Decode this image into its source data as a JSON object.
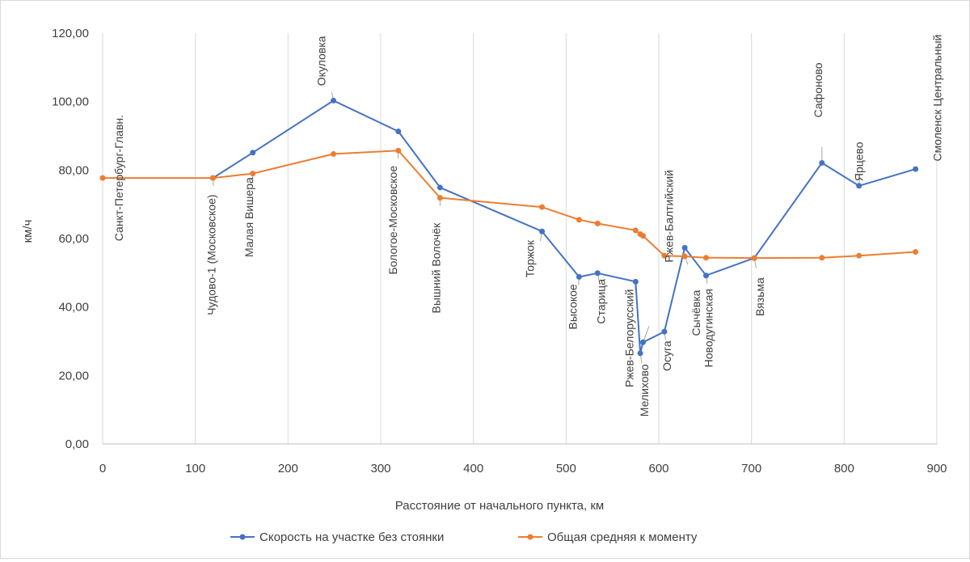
{
  "chart_data": {
    "type": "line",
    "xlabel": "Расстояние от начального пункта, км",
    "ylabel": "км/ч",
    "xlim": [
      0,
      900
    ],
    "ylim": [
      0,
      120
    ],
    "x_ticks": [
      "0",
      "100",
      "200",
      "300",
      "400",
      "500",
      "600",
      "700",
      "800",
      "900"
    ],
    "y_ticks": [
      "0,00",
      "20,00",
      "40,00",
      "60,00",
      "80,00",
      "100,00",
      "120,00"
    ],
    "grid": "vertical",
    "legend": "bottom",
    "series": [
      {
        "name": "Скорость на участке без стоянки",
        "color": "#4472c4",
        "x": [
          119,
          162,
          249,
          319,
          364,
          474,
          514,
          534,
          575,
          580,
          583,
          606,
          628,
          651,
          703,
          776,
          816,
          877
        ],
        "y": [
          77.7,
          85.1,
          100.3,
          91.3,
          74.9,
          62.1,
          48.8,
          49.9,
          47.4,
          26.5,
          29.7,
          32.8,
          57.3,
          49.2,
          54.3,
          82.1,
          75.4,
          80.3
        ]
      },
      {
        "name": "Общая средняя к моменту",
        "color": "#ed7d31",
        "x": [
          0,
          119,
          162,
          249,
          319,
          364,
          474,
          514,
          534,
          575,
          580,
          583,
          606,
          628,
          651,
          703,
          776,
          816,
          877
        ],
        "y": [
          77.7,
          77.7,
          79.0,
          84.7,
          85.7,
          71.9,
          69.2,
          65.5,
          64.4,
          62.4,
          61.3,
          60.8,
          55.0,
          54.8,
          54.4,
          54.3,
          54.4,
          55.0,
          56.1
        ]
      }
    ],
    "stations": [
      {
        "label": "Санкт-Петербург-Главн.",
        "x": 0,
        "y": 77.7
      },
      {
        "label": "Чудово-1 (Московское)",
        "x": 119,
        "y": 77.7
      },
      {
        "label": "Малая Вишера",
        "x": 162,
        "y": 79.0
      },
      {
        "label": "Окуловка",
        "x": 249,
        "y": 100.3
      },
      {
        "label": "Бологое-Московское",
        "x": 319,
        "y": 85.7
      },
      {
        "label": "Вышний Волочёк",
        "x": 364,
        "y": 71.9
      },
      {
        "label": "Торжок",
        "x": 474,
        "y": 62.1
      },
      {
        "label": "Высокое",
        "x": 514,
        "y": 48.8
      },
      {
        "label": "Старица",
        "x": 534,
        "y": 49.9
      },
      {
        "label": "Ржев-Белорусский",
        "x": 575,
        "y": 47.4
      },
      {
        "label": "Мелихово",
        "x": 580,
        "y": 26.5
      },
      {
        "label": "Ржев-Балтийский",
        "x": 583,
        "y": 29.7
      },
      {
        "label": "Осуга",
        "x": 606,
        "y": 32.8
      },
      {
        "label": "Сычёвка",
        "x": 628,
        "y": 54.8
      },
      {
        "label": "Новодугинская",
        "x": 651,
        "y": 49.2
      },
      {
        "label": "Вязьма",
        "x": 703,
        "y": 54.3
      },
      {
        "label": "Сафоново",
        "x": 776,
        "y": 82.1
      },
      {
        "label": "Ярцево",
        "x": 816,
        "y": 75.4
      },
      {
        "label": "Смоленск Центральный",
        "x": 877,
        "y": 80.3
      }
    ]
  }
}
